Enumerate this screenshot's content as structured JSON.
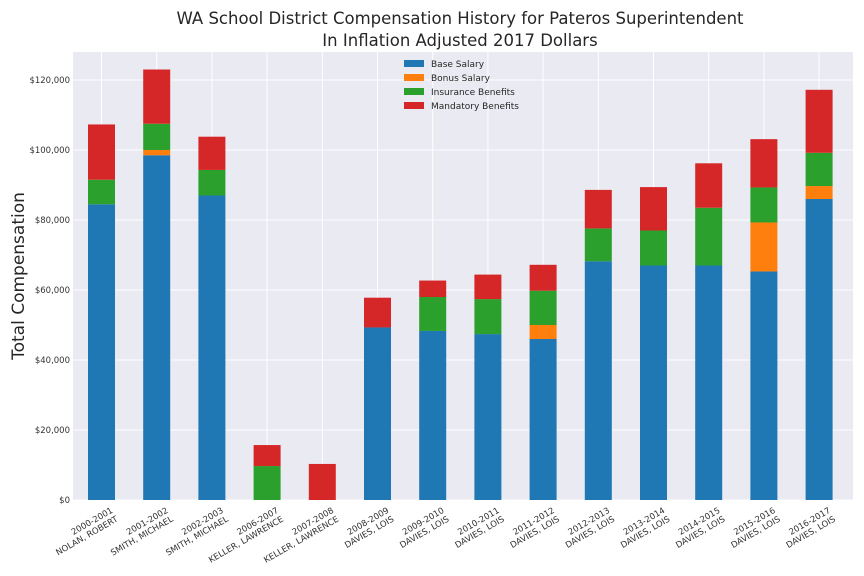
{
  "chart_data": {
    "type": "bar",
    "stacked": true,
    "title": "WA School District Compensation History for Pateros Superintendent",
    "subtitle": "In Inflation Adjusted 2017 Dollars",
    "xlabel": "",
    "ylabel": "Total Compensation",
    "ylim": [
      0,
      128000
    ],
    "yticks": [
      0,
      20000,
      40000,
      60000,
      80000,
      100000,
      120000
    ],
    "ytick_labels": [
      "$0",
      "$20,000",
      "$40,000",
      "$60,000",
      "$80,000",
      "$100,000",
      "$120,000"
    ],
    "grid": true,
    "legend_position": "top-center",
    "categories": [
      [
        "2000-2001",
        "NOLAN, ROBERT"
      ],
      [
        "2001-2002",
        "SMITH, MICHAEL"
      ],
      [
        "2002-2003",
        "SMITH, MICHAEL"
      ],
      [
        "2006-2007",
        "KELLER, LAWRENCE"
      ],
      [
        "2007-2008",
        "KELLER, LAWRENCE"
      ],
      [
        "2008-2009",
        "DAVIES, LOIS"
      ],
      [
        "2009-2010",
        "DAVIES, LOIS"
      ],
      [
        "2010-2011",
        "DAVIES, LOIS"
      ],
      [
        "2011-2012",
        "DAVIES, LOIS"
      ],
      [
        "2012-2013",
        "DAVIES, LOIS"
      ],
      [
        "2013-2014",
        "DAVIES, LOIS"
      ],
      [
        "2014-2015",
        "DAVIES, LOIS"
      ],
      [
        "2015-2016",
        "DAVIES, LOIS"
      ],
      [
        "2016-2017",
        "DAVIES, LOIS"
      ]
    ],
    "series": [
      {
        "name": "Base Salary",
        "color": "#1f77b4",
        "values": [
          84500,
          98500,
          87000,
          0,
          0,
          49300,
          48300,
          47400,
          46000,
          68200,
          67000,
          67000,
          65300,
          86000
        ]
      },
      {
        "name": "Bonus Salary",
        "color": "#ff7f0e",
        "values": [
          0,
          1500,
          0,
          0,
          0,
          0,
          0,
          0,
          4000,
          0,
          0,
          0,
          14000,
          3700
        ]
      },
      {
        "name": "Insurance Benefits",
        "color": "#2ca02c",
        "values": [
          7000,
          7500,
          7300,
          9700,
          0,
          0,
          9700,
          10000,
          9800,
          9400,
          10000,
          16500,
          10000,
          9500
        ]
      },
      {
        "name": "Mandatory Benefits",
        "color": "#d62728",
        "values": [
          15800,
          15500,
          9500,
          6000,
          10300,
          8500,
          4700,
          7000,
          7400,
          11000,
          12400,
          12700,
          13800,
          18000
        ]
      }
    ]
  }
}
